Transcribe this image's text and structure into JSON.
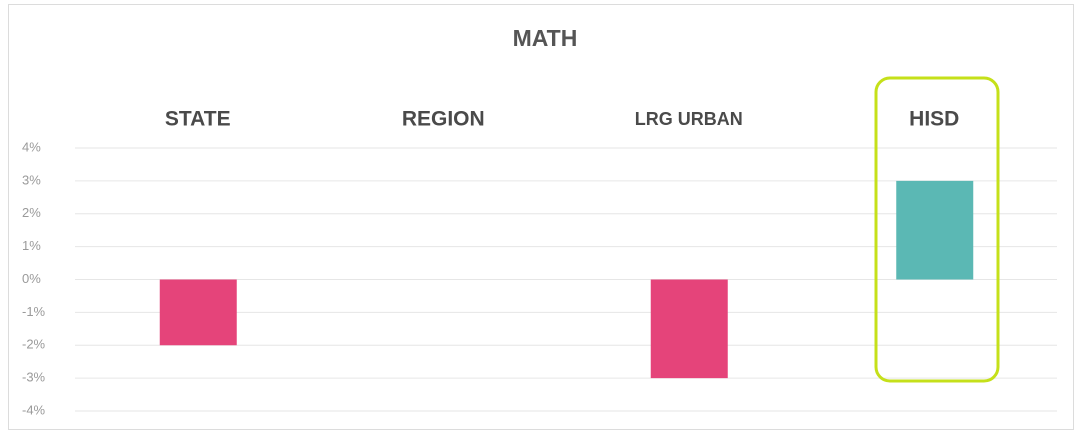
{
  "chart_data": {
    "type": "bar",
    "title": "MATH",
    "categories": [
      "STATE",
      "REGION",
      "LRG URBAN",
      "HISD"
    ],
    "values": [
      -2,
      0,
      -3,
      3
    ],
    "colors": [
      "#e5447a",
      "#e5447a",
      "#e5447a",
      "#5bb8b4"
    ],
    "ylim": [
      -4,
      4
    ],
    "yticks": [
      {
        "value": -4,
        "label": "-4%"
      },
      {
        "value": -3,
        "label": "-3%"
      },
      {
        "value": -2,
        "label": "-2%"
      },
      {
        "value": -1,
        "label": "-1%"
      },
      {
        "value": 0,
        "label": "0%"
      },
      {
        "value": 1,
        "label": "1%"
      },
      {
        "value": 2,
        "label": "2%"
      },
      {
        "value": 3,
        "label": "3%"
      },
      {
        "value": 4,
        "label": "4%"
      }
    ],
    "grid": true
  }
}
